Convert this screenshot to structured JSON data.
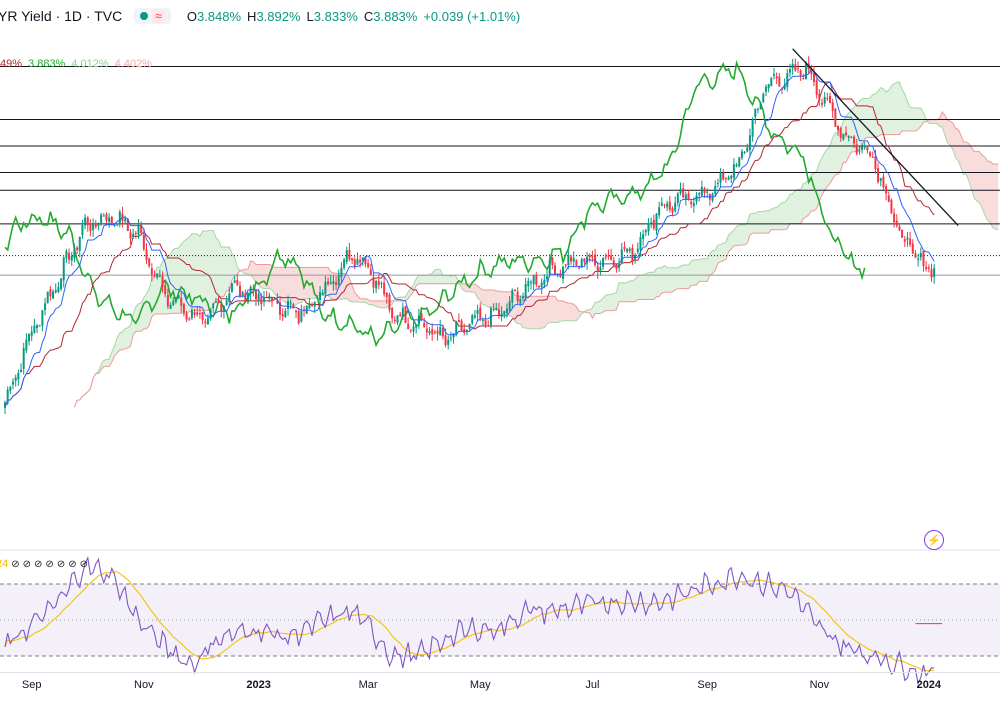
{
  "header": {
    "title": "YR Yield · 1D · TVC",
    "wave_symbol": "≈",
    "ohlc": [
      {
        "key": "O",
        "value": "3.848%"
      },
      {
        "key": "H",
        "value": "3.892%"
      },
      {
        "key": "L",
        "value": "3.833%"
      },
      {
        "key": "C",
        "value": "3.883%"
      },
      {
        "key": "",
        "value": "+0.039 (+1.01%)"
      }
    ]
  },
  "ichimoku_values": [
    {
      "text": "49%",
      "color": "#b2282e"
    },
    {
      "text": "3.883%",
      "color": "#22ab2e"
    },
    {
      "text": "4.012%",
      "color": "#8fd18f"
    },
    {
      "text": "4.402%",
      "color": "#f4a7a7"
    }
  ],
  "rsi_legend": {
    "length": "24",
    "eyes": [
      "⊘",
      "⊘",
      "⊘",
      "⊘",
      "⊘",
      "⊘",
      "⊘"
    ]
  },
  "x_axis_labels": [
    {
      "label": "Sep",
      "bold": false,
      "idx": 10
    },
    {
      "label": "Nov",
      "bold": false,
      "idx": 52
    },
    {
      "label": "2023",
      "bold": true,
      "idx": 95
    },
    {
      "label": "Mar",
      "bold": false,
      "idx": 136
    },
    {
      "label": "May",
      "bold": false,
      "idx": 178
    },
    {
      "label": "Jul",
      "bold": false,
      "idx": 220
    },
    {
      "label": "Sep",
      "bold": false,
      "idx": 263
    },
    {
      "label": "Nov",
      "bold": false,
      "idx": 305
    },
    {
      "label": "2024",
      "bold": true,
      "idx": 346
    }
  ],
  "chart_data": [
    {
      "type": "candlestick",
      "title": "YR Yield · 1D · TVC",
      "unit": "%",
      "ylim": [
        3.0,
        5.15
      ],
      "grid": false,
      "series": [
        {
          "name": "close",
          "color_up": "#089981",
          "color_down": "#f23645",
          "anchors": [
            [
              0,
              3.1
            ],
            [
              10,
              3.5
            ],
            [
              30,
              4.1
            ],
            [
              40,
              4.15
            ],
            [
              50,
              4.05
            ],
            [
              60,
              3.7
            ],
            [
              75,
              3.55
            ],
            [
              85,
              3.75
            ],
            [
              95,
              3.7
            ],
            [
              110,
              3.6
            ],
            [
              120,
              3.75
            ],
            [
              130,
              3.95
            ],
            [
              137,
              3.85
            ],
            [
              145,
              3.6
            ],
            [
              155,
              3.55
            ],
            [
              165,
              3.45
            ],
            [
              175,
              3.55
            ],
            [
              185,
              3.6
            ],
            [
              195,
              3.75
            ],
            [
              205,
              3.85
            ],
            [
              215,
              3.9
            ],
            [
              225,
              3.9
            ],
            [
              235,
              3.95
            ],
            [
              245,
              4.2
            ],
            [
              255,
              4.25
            ],
            [
              265,
              4.3
            ],
            [
              275,
              4.45
            ],
            [
              285,
              4.9
            ],
            [
              295,
              4.95
            ],
            [
              300,
              5.0
            ],
            [
              305,
              4.85
            ],
            [
              315,
              4.6
            ],
            [
              325,
              4.5
            ],
            [
              335,
              4.05
            ],
            [
              345,
              3.85
            ],
            [
              348,
              3.88
            ]
          ]
        }
      ],
      "overlays": [
        {
          "name": "Tenkan-sen",
          "color": "#2962ff"
        },
        {
          "name": "Kijun-sen",
          "color": "#b2282e"
        },
        {
          "name": "Lagging span",
          "color": "#22ab2e"
        },
        {
          "name": "Leading span A",
          "color": "#a5d6a7"
        },
        {
          "name": "Leading span B",
          "color": "#ef9a9a"
        }
      ],
      "horizontal_levels": [
        5.0,
        4.7,
        4.55,
        4.4,
        4.3,
        4.11,
        3.93,
        3.82
      ],
      "trendline": {
        "from": [
          295,
          5.1
        ],
        "to": [
          357,
          4.1
        ]
      }
    },
    {
      "type": "line",
      "title": "RSI",
      "length": 24,
      "ylim": [
        0,
        100
      ],
      "bands": [
        30,
        70
      ],
      "series": [
        {
          "name": "RSI",
          "color": "#7e57c2",
          "anchors": [
            [
              0,
              35
            ],
            [
              20,
              60
            ],
            [
              30,
              80
            ],
            [
              40,
              75
            ],
            [
              50,
              50
            ],
            [
              60,
              35
            ],
            [
              70,
              25
            ],
            [
              80,
              40
            ],
            [
              95,
              45
            ],
            [
              105,
              40
            ],
            [
              120,
              50
            ],
            [
              130,
              55
            ],
            [
              137,
              45
            ],
            [
              145,
              30
            ],
            [
              155,
              30
            ],
            [
              165,
              40
            ],
            [
              175,
              45
            ],
            [
              185,
              45
            ],
            [
              195,
              55
            ],
            [
              205,
              55
            ],
            [
              215,
              58
            ],
            [
              225,
              60
            ],
            [
              235,
              60
            ],
            [
              245,
              60
            ],
            [
              255,
              65
            ],
            [
              265,
              70
            ],
            [
              275,
              75
            ],
            [
              285,
              70
            ],
            [
              295,
              65
            ],
            [
              305,
              45
            ],
            [
              315,
              35
            ],
            [
              325,
              30
            ],
            [
              335,
              25
            ],
            [
              345,
              20
            ],
            [
              348,
              25
            ]
          ]
        },
        {
          "name": "RSI-based MA",
          "color": "#f5c518"
        }
      ]
    }
  ]
}
